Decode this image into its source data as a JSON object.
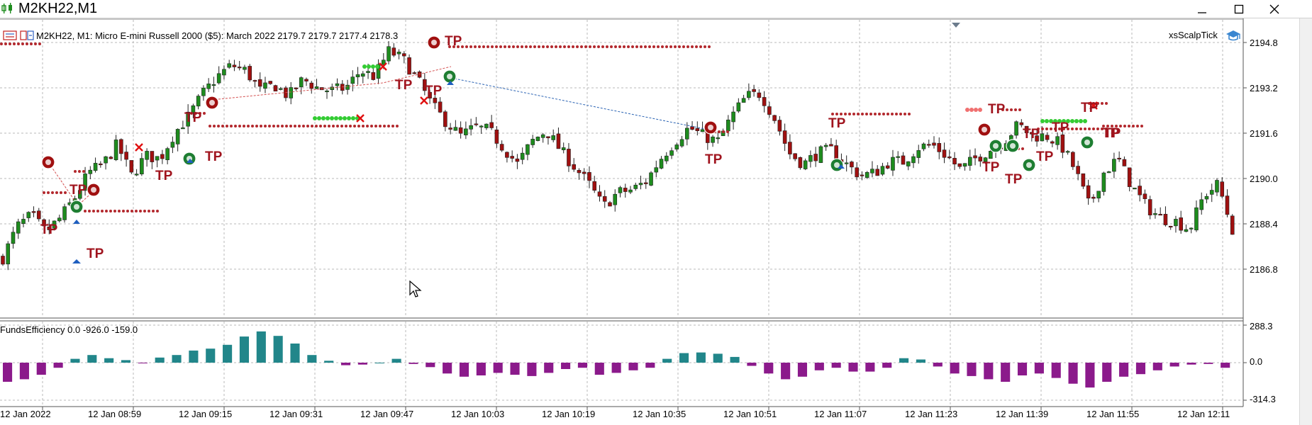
{
  "window": {
    "title": "M2KH22,M1",
    "icon": "candlestick-chart-icon",
    "controls": [
      "minimize-icon",
      "maximize-icon",
      "close-icon"
    ]
  },
  "chart": {
    "symbol_info": "M2KH22, M1:  Micro E-mini Russell 2000 ($5): March 2022  2179.7 2179.7 2177.4 2178.3",
    "expert_name": "xsScalpTick",
    "expert_icon": "graduation-cap-icon",
    "toolbar_icons": [
      "trade-panel-icon",
      "indicator-list-icon"
    ],
    "price_labels": [
      "2194.8",
      "2193.2",
      "2191.6",
      "2190.0",
      "2188.4",
      "2186.8"
    ],
    "time_labels": [
      "12 Jan 2022",
      "12 Jan 08:59",
      "12 Jan 09:15",
      "12 Jan 09:31",
      "12 Jan 09:47",
      "12 Jan 10:03",
      "12 Jan 10:19",
      "12 Jan 10:35",
      "12 Jan 10:51",
      "12 Jan 11:07",
      "12 Jan 11:23",
      "12 Jan 11:39",
      "12 Jan 11:55",
      "12 Jan 12:11"
    ],
    "tp_label": "TP",
    "colors": {
      "bull": "#1e8c1e",
      "bear": "#a01010",
      "grid": "#b8b8b8",
      "tp": "#a0141e",
      "dots": "#b3282d",
      "pos": "#21868a",
      "neg": "#8b1a8b",
      "green_dots": "#33cc33",
      "blue_arrow": "#1f5fbf"
    }
  },
  "indicator": {
    "label": "FundsEfficiency 0.0 -926.0 -159.0",
    "scale_labels": [
      "288.3",
      "0.0",
      "-314.3"
    ]
  },
  "chart_data": {
    "type": "candlestick",
    "title": "M2KH22, M1:  Micro E-mini Russell 2000 ($5): March 2022",
    "ylim": [
      2185.9,
      2195.5
    ],
    "x": [
      "12 Jan 2022",
      "12 Jan 08:59",
      "12 Jan 09:15",
      "12 Jan 09:31",
      "12 Jan 09:47",
      "12 Jan 10:03",
      "12 Jan 10:19",
      "12 Jan 10:35",
      "12 Jan 10:51",
      "12 Jan 11:07",
      "12 Jan 11:23",
      "12 Jan 11:39",
      "12 Jan 11:55",
      "12 Jan 12:11"
    ],
    "close_path": [
      2187.2,
      2188.3,
      2188.7,
      2188.1,
      2188.6,
      2189.3,
      2190.2,
      2190.5,
      2191.2,
      2190.1,
      2190.8,
      2190.7,
      2191.6,
      2192.2,
      2193.0,
      2193.6,
      2194.0,
      2193.8,
      2193.1,
      2193.3,
      2192.9,
      2193.5,
      2193.2,
      2193.1,
      2193.2,
      2193.8,
      2193.6,
      2194.5,
      2194.2,
      2193.5,
      2192.6,
      2192.0,
      2191.5,
      2191.8,
      2191.7,
      2191.1,
      2190.5,
      2191.3,
      2191.7,
      2191.0,
      2190.4,
      2189.8,
      2189.0,
      2189.5,
      2189.6,
      2189.9,
      2190.7,
      2191.3,
      2191.8,
      2191.5,
      2191.3,
      2192.2,
      2192.9,
      2193.0,
      2192.1,
      2190.9,
      2190.5,
      2190.9,
      2191.0,
      2190.5,
      2190.1,
      2190.2,
      2190.6,
      2190.6,
      2191.1,
      2191.2,
      2190.8,
      2190.3,
      2190.7,
      2191.0,
      2191.3,
      2191.9,
      2191.5,
      2191.5,
      2191.2,
      2190.3,
      2189.0,
      2190.2,
      2190.7,
      2189.7,
      2189.0,
      2188.6,
      2188.5,
      2188.2,
      2189.4,
      2189.8,
      2188.2
    ],
    "indicator_values": [
      -150,
      -130,
      -95,
      -40,
      30,
      60,
      35,
      20,
      -5,
      40,
      60,
      95,
      110,
      140,
      205,
      245,
      210,
      150,
      60,
      15,
      -20,
      -15,
      0,
      30,
      -10,
      -35,
      -85,
      -110,
      -100,
      -80,
      -95,
      -105,
      -80,
      -50,
      -40,
      -95,
      -80,
      -60,
      -40,
      30,
      75,
      80,
      70,
      45,
      -25,
      -85,
      -130,
      -110,
      -60,
      -40,
      -70,
      -70,
      -40,
      35,
      25,
      -30,
      -85,
      -105,
      -130,
      -150,
      -100,
      -85,
      -120,
      -165,
      -195,
      -150,
      -110,
      -90,
      -60,
      -30,
      -15,
      -10,
      -40
    ]
  }
}
